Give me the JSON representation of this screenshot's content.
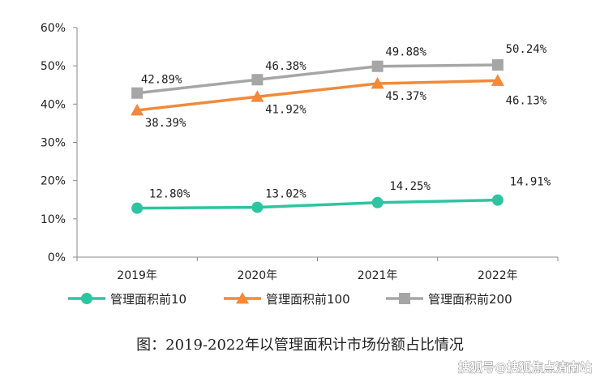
{
  "chart_data": {
    "type": "line",
    "title": "",
    "xlabel": "",
    "ylabel": "",
    "categories": [
      "2019年",
      "2020年",
      "2021年",
      "2022年"
    ],
    "ylim": [
      0,
      60
    ],
    "yticks": [
      "0%",
      "10%",
      "20%",
      "30%",
      "40%",
      "50%",
      "60%"
    ],
    "grid": false,
    "legend_position": "bottom",
    "series": [
      {
        "name": "管理面积前10",
        "marker": "circle",
        "color": "#2EC4A0",
        "values": [
          12.8,
          13.02,
          14.25,
          14.91
        ],
        "labels": [
          "12.80%",
          "13.02%",
          "14.25%",
          "14.91%"
        ]
      },
      {
        "name": "管理面积前100",
        "marker": "triangle",
        "color": "#F08A3C",
        "values": [
          38.39,
          41.92,
          45.37,
          46.13
        ],
        "labels": [
          "38.39%",
          "41.92%",
          "45.37%",
          "46.13%"
        ]
      },
      {
        "name": "管理面积前200",
        "marker": "square",
        "color": "#A6A6A6",
        "values": [
          42.89,
          46.38,
          49.88,
          50.24
        ],
        "labels": [
          "42.89%",
          "46.38%",
          "49.88%",
          "50.24%"
        ]
      }
    ]
  },
  "caption": "图：2019-2022年以管理面积计市场份额占比情况",
  "watermark": "搜狐号@搜狐焦点清南站"
}
